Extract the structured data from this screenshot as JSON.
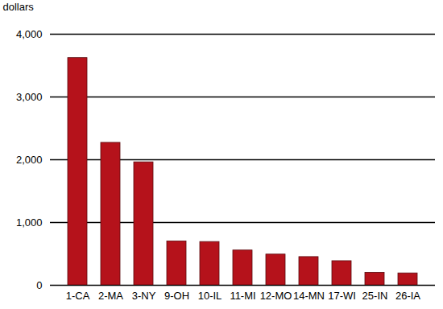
{
  "chart_data": {
    "type": "bar",
    "y_label": "dollars",
    "categories": [
      "1-CA",
      "2-MA",
      "3-NY",
      "9-OH",
      "10-IL",
      "11-MI",
      "12-MO",
      "14-MN",
      "17-WI",
      "25-IN",
      "26-IA"
    ],
    "values": [
      3620,
      2270,
      1960,
      700,
      690,
      555,
      490,
      450,
      385,
      200,
      190
    ],
    "color": "#b5121b",
    "ylim": [
      0,
      4000
    ],
    "yticks": [
      0,
      {
        "value": 1000,
        "label": "1,000"
      },
      {
        "value": 2000,
        "label": "2,000"
      },
      {
        "value": 3000,
        "label": "3,000"
      },
      {
        "value": 4000,
        "label": "4,000"
      }
    ],
    "grid": true
  }
}
